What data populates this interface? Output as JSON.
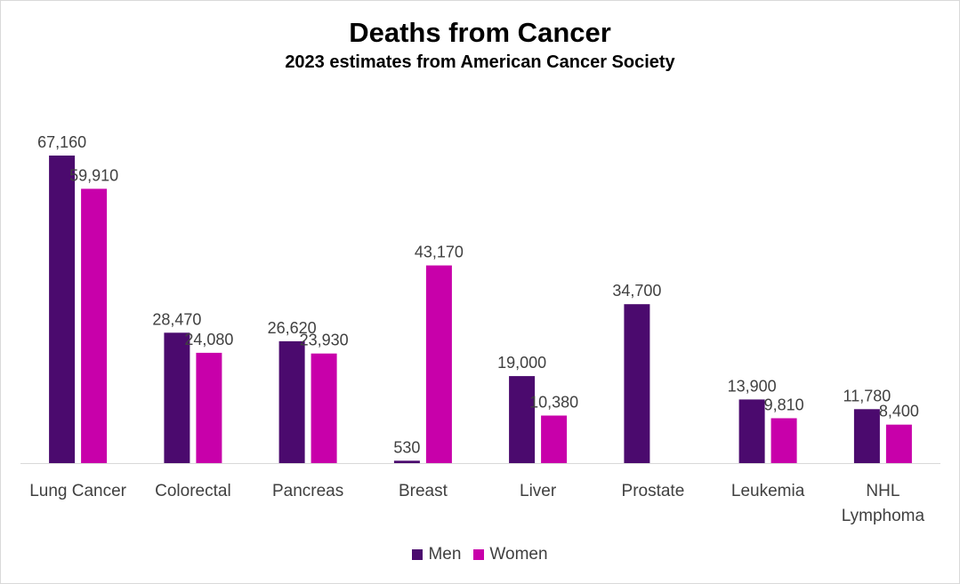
{
  "chart_data": {
    "type": "bar",
    "title": "Deaths from Cancer",
    "subtitle": "2023 estimates from American Cancer Society",
    "categories": [
      "Lung Cancer",
      "Colorectal",
      "Pancreas",
      "Breast",
      "Liver",
      "Prostate",
      "Leukemia",
      "NHL Lymphoma"
    ],
    "series": [
      {
        "name": "Men",
        "color": "#4b0a6e",
        "values": [
          67160,
          28470,
          26620,
          530,
          19000,
          34700,
          13900,
          11780
        ],
        "labels": [
          "67,160",
          "28,470",
          "26,620",
          "530",
          "19,000",
          "34,700",
          "13,900",
          "11,780"
        ]
      },
      {
        "name": "Women",
        "color": "#c800aa",
        "values": [
          59910,
          24080,
          23930,
          43170,
          10380,
          null,
          9810,
          8400
        ],
        "labels": [
          "59,910",
          "24,080",
          "23,930",
          "43,170",
          "10,380",
          "",
          "9,810",
          "8,400"
        ]
      }
    ],
    "xlabel": "",
    "ylabel": "",
    "ylim": [
      0,
      70000
    ],
    "grid": false,
    "legend_position": "bottom"
  }
}
